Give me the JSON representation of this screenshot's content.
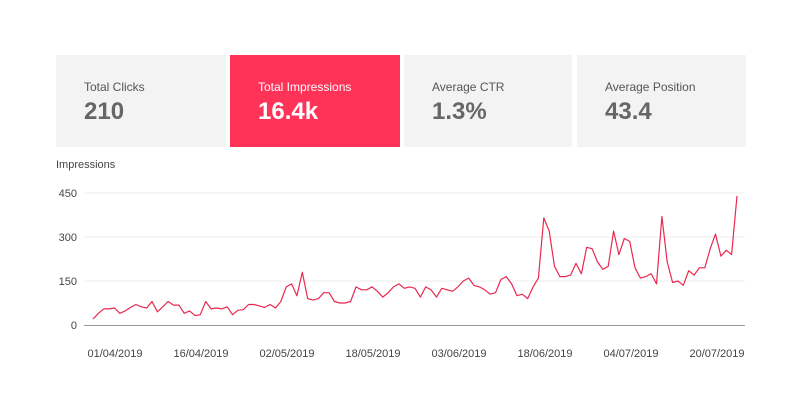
{
  "cards": [
    {
      "label": "Total Clicks",
      "value": "210",
      "active": false
    },
    {
      "label": "Total Impressions",
      "value": "16.4k",
      "active": true
    },
    {
      "label": "Average CTR",
      "value": "1.3%",
      "active": false
    },
    {
      "label": "Average Position",
      "value": "43.4",
      "active": false
    }
  ],
  "colors": {
    "accent": "#ff3358",
    "card_bg": "#f3f3f3",
    "line": "#e8294f",
    "grid": "#eeeeee",
    "axis": "#999999"
  },
  "chart_data": {
    "type": "line",
    "title": "Impressions",
    "xlabel": "",
    "ylabel": "",
    "ylim": [
      0,
      450
    ],
    "grid": true,
    "yticks": [
      "0",
      "150",
      "300",
      "450"
    ],
    "xticks": [
      "01/04/2019",
      "16/04/2019",
      "02/05/2019",
      "18/05/2019",
      "03/06/2019",
      "18/06/2019",
      "04/07/2019",
      "20/07/2019"
    ],
    "x_start": "2019-03-28",
    "x_end": "2019-07-20",
    "series": [
      {
        "name": "",
        "values": [
          20,
          40,
          55,
          55,
          58,
          40,
          48,
          60,
          70,
          62,
          58,
          80,
          45,
          62,
          80,
          68,
          68,
          40,
          48,
          32,
          35,
          80,
          55,
          58,
          55,
          62,
          35,
          50,
          52,
          70,
          70,
          65,
          60,
          70,
          58,
          80,
          130,
          140,
          100,
          180,
          90,
          85,
          90,
          110,
          110,
          80,
          75,
          75,
          80,
          130,
          120,
          120,
          130,
          115,
          95,
          110,
          130,
          140,
          125,
          130,
          125,
          95,
          130,
          120,
          95,
          125,
          120,
          115,
          130,
          150,
          160,
          135,
          130,
          120,
          105,
          110,
          155,
          165,
          140,
          100,
          105,
          90,
          130,
          160,
          365,
          320,
          200,
          165,
          165,
          170,
          210,
          175,
          265,
          260,
          215,
          190,
          200,
          320,
          240,
          295,
          285,
          195,
          160,
          165,
          175,
          140,
          370,
          215,
          145,
          150,
          135,
          185,
          170,
          195,
          195,
          260,
          310,
          235,
          255,
          240,
          440
        ]
      }
    ]
  }
}
